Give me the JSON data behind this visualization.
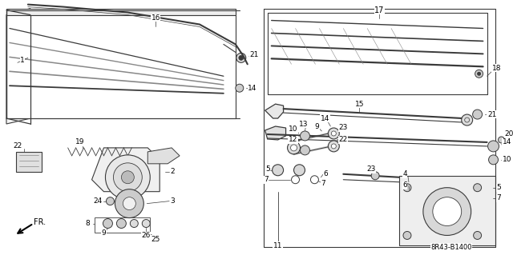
{
  "bg_color": "#ffffff",
  "diagram_code": "8R43-B1400",
  "line_color": "#3a3a3a",
  "light_gray": "#aaaaaa",
  "mid_gray": "#888888"
}
